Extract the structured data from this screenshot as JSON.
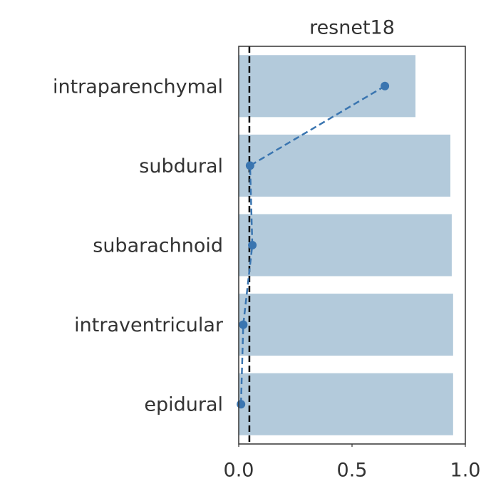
{
  "chart_data": {
    "type": "bar",
    "orientation": "horizontal",
    "title": "resnet18",
    "categories": [
      "intraparenchymal",
      "subdural",
      "subarachnoid",
      "intraventricular",
      "epidural"
    ],
    "bars": {
      "values": [
        0.78,
        0.934,
        0.94,
        0.946,
        0.946
      ],
      "color": "#b3cadb"
    },
    "points": {
      "values": [
        0.645,
        0.05,
        0.06,
        0.02,
        0.01
      ],
      "color": "#3a75b0",
      "linestyle": "dashed"
    },
    "reference_line": {
      "value": 0.047,
      "color": "#000000",
      "linestyle": "dashed"
    },
    "xlim": [
      0,
      1
    ],
    "xticks": [
      {
        "value": 0,
        "label": "0.0"
      },
      0.5,
      {
        "value": 1,
        "label": "1.0"
      }
    ],
    "grid": false
  }
}
